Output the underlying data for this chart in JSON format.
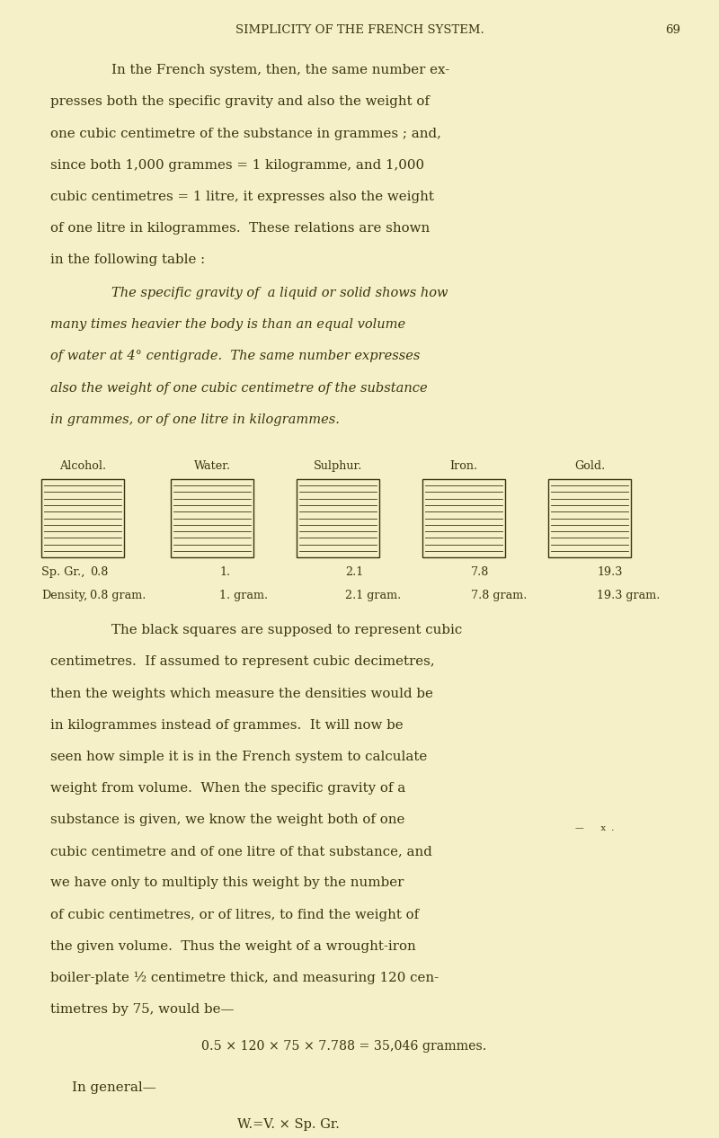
{
  "bg_color": "#f5f0c8",
  "text_color": "#3a3510",
  "page_width": 8.0,
  "page_height": 12.66,
  "header_text": "SIMPLICITY OF THE FRENCH SYSTEM.",
  "header_page": "69",
  "paragraph1_indent": "In the French system, then, the same number ex-",
  "paragraph1_rest": [
    "presses both the specific gravity and also the weight of",
    "one cubic centimetre of the substance in grammes ; and,",
    "since both 1,000 grammes = 1 kilogramme, and 1,000",
    "cubic centimetres = 1 litre, it expresses also the weight",
    "of one litre in kilogrammes.  These relations are shown",
    "in the following table :"
  ],
  "italic_indent": "The specific gravity of  a liquid or solid shows how",
  "italic_rest": [
    "many times heavier the body is than an equal volume",
    "of water at 4° centigrade.  The same number expresses",
    "also the weight of one cubic centimetre of the substance",
    "in grammes, or of one litre in kilogrammes."
  ],
  "table_labels": [
    "Alcohol.",
    "Water.",
    "Sulphur.",
    "Iron.",
    "Gold."
  ],
  "sp_gr_label": "Sp. Gr.,",
  "sp_gr_vals": [
    "0.8",
    "1.",
    "2.1",
    "7.8",
    "19.3"
  ],
  "density_label": "Density,",
  "density_vals": [
    "0.8 gram.",
    "1. gram.",
    "2.1 gram.",
    "7.8 gram.",
    "19.3 gram."
  ],
  "paragraph2_indent": "The black squares are supposed to represent cubic",
  "paragraph2_rest": [
    "centimetres.  If assumed to represent cubic decimetres,",
    "then the weights which measure the densities would be",
    "in kilogrammes instead of grammes.  It will now be",
    "seen how simple it is in the French system to calculate",
    "weight from volume.  When the specific gravity of a",
    "substance is given, we know the weight both of one",
    "cubic centimetre and of one litre of that substance, and",
    "we have only to multiply this weight by the number",
    "of cubic centimetres, or of litres, to find the weight of",
    "the given volume.  Thus the weight of a wrought-iron",
    "boiler-plate ½ centimetre thick, and measuring 120 cen-",
    "timetres by 75, would be—"
  ],
  "formula1": "0.5 × 120 × 75 × 7.788 = 35,046 grammes.",
  "general_text": "In general—",
  "formula2": "W.=V. × Sp. Gr.",
  "footnote": "—      x  ."
}
